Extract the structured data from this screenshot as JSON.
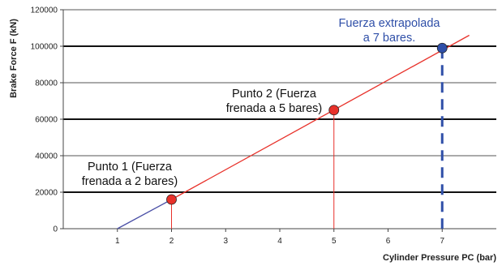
{
  "chart_data": {
    "type": "line",
    "xlabel": "Cylinder Pressure PC (bar)",
    "ylabel": "Brake Force F (kN)",
    "xlim": [
      0,
      8
    ],
    "ylim": [
      0,
      120000
    ],
    "x_ticks": [
      1,
      2,
      3,
      4,
      5,
      6,
      7
    ],
    "y_ticks": [
      0,
      20000,
      40000,
      60000,
      80000,
      100000,
      120000
    ],
    "grid": "horizontal, thick at 20000, 60000 and 100000",
    "series": [
      {
        "color": "#4a4fa6",
        "x": [
          1,
          2
        ],
        "y": [
          0,
          16000
        ]
      },
      {
        "color": "#e8312a",
        "x": [
          2,
          7.5
        ],
        "y": [
          16000,
          106000
        ]
      }
    ],
    "points": [
      {
        "x": 2,
        "y": 16000,
        "color": "#e8312a"
      },
      {
        "x": 5,
        "y": 65000,
        "color": "#e8312a"
      },
      {
        "x": 7,
        "y": 99000,
        "color": "#2f4fa8"
      }
    ],
    "annotations": [
      {
        "lines": [
          "Punto 1 (Fuerza",
          "frenada a 2 bares)"
        ],
        "color": "#111111"
      },
      {
        "lines": [
          "Punto 2 (Fuerza",
          "frenada a 5 bares)"
        ],
        "color": "#111111"
      },
      {
        "lines": [
          "Fuerza extrapolada",
          "a 7 bares."
        ],
        "color": "#2f4fa8"
      }
    ]
  }
}
